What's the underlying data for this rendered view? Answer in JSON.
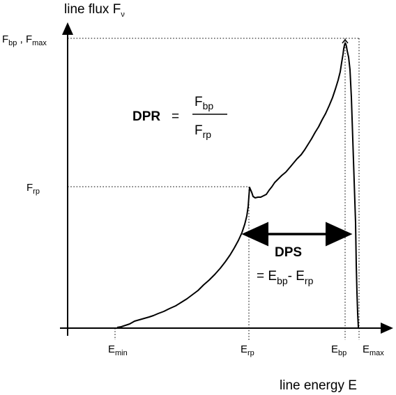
{
  "axes": {
    "y_title": "line flux F",
    "y_title_sub": "ν",
    "x_title": "line energy E"
  },
  "y_ticks": {
    "top": {
      "a": "F",
      "a_sub": "bp",
      "sep": " , ",
      "b": "F",
      "b_sub": "max"
    },
    "mid": {
      "a": "F",
      "a_sub": "rp"
    }
  },
  "x_ticks": {
    "min": {
      "a": "E",
      "a_sub": "min"
    },
    "rp": {
      "a": "E",
      "a_sub": "rp"
    },
    "bp": {
      "a": "E",
      "a_sub": "bp"
    },
    "max": {
      "a": "E",
      "a_sub": "max"
    }
  },
  "dpr": {
    "label": "DPR",
    "equals": "=",
    "num": "F",
    "num_sub": "bp",
    "den": "F",
    "den_sub": "rp"
  },
  "dps": {
    "label": "DPS",
    "line1": "= E",
    "sub1": "bp",
    "minus": "- E",
    "sub2": "rp"
  }
}
